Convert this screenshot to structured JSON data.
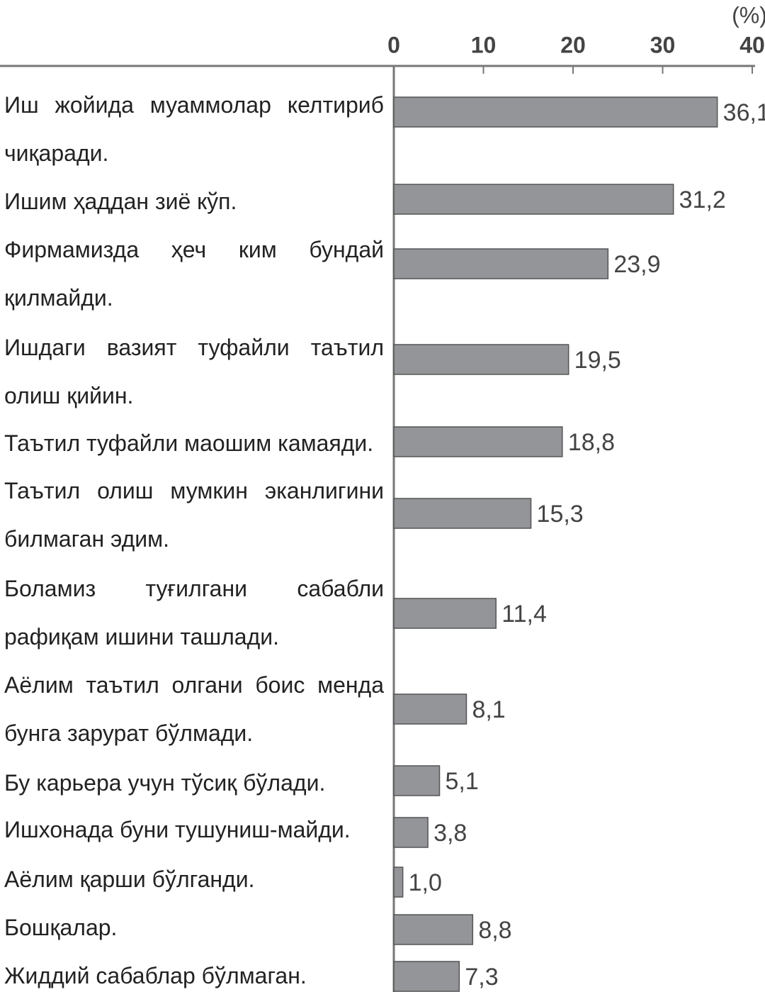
{
  "chart_data": {
    "type": "bar",
    "orientation": "horizontal",
    "unit_label": "(%)",
    "categories": [
      "Иш жойида муаммолар келтириб чиқаради.",
      "Ишим ҳаддан зиё кўп.",
      "Фирмамизда ҳеч ким бундай қилмайди.",
      "Ишдаги вазият туфайли таътил олиш қийин.",
      "Таътил туфайли маошим камаяди.",
      "Таътил олиш мумкин эканлигини билмаган эдим.",
      "Боламиз туғилгани сабабли рафиқам ишини ташлади.",
      "Аёлим таътил олгани боис менда бунга зарурат бўлмади.",
      "Бу карьера учун тўсиқ бўлади.",
      "Ишхонада буни тушуниш-майди.",
      "Аёлим қарши бўлганди.",
      "Бошқалар.",
      "Жиддий сабаблар бўлмаган."
    ],
    "values": [
      36.1,
      31.2,
      23.9,
      19.5,
      18.8,
      15.3,
      11.4,
      8.1,
      5.1,
      3.8,
      1.0,
      8.8,
      7.3
    ],
    "value_labels": [
      "36,1",
      "31,2",
      "23,9",
      "19,5",
      "18,8",
      "15,3",
      "11,4",
      "8,1",
      "5,1",
      "3,8",
      "1,0",
      "8,8",
      "7,3"
    ],
    "color": "#939598",
    "xlim": [
      0,
      40
    ],
    "xticks": [
      0,
      10,
      20,
      30,
      40
    ]
  }
}
